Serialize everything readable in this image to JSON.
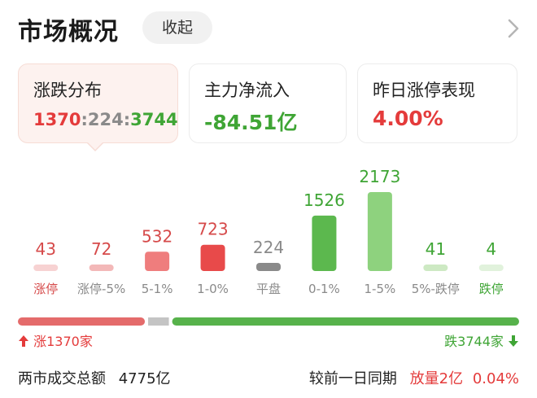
{
  "header": {
    "title": "市场概况",
    "collapse_label": "收起"
  },
  "cards": [
    {
      "title": "涨跌分布",
      "up": "1370",
      "sep1": ":",
      "flat": "224",
      "sep2": ":",
      "down": "3744"
    },
    {
      "title": "主力净流入",
      "value": "-84.51亿"
    },
    {
      "title": "昨日涨停表现",
      "value": "4.00%"
    }
  ],
  "colors": {
    "red": "#e43b3b",
    "green": "#3fa535",
    "gray": "#8a8a8a",
    "flat_bar": "#888888",
    "chevron": "#b5b5b5"
  },
  "chart_data": {
    "type": "bar",
    "categories": [
      "涨停",
      "涨停-5%",
      "5-1%",
      "1-0%",
      "平盘",
      "0-1%",
      "1-5%",
      "5%-跌停",
      "跌停"
    ],
    "values": [
      43,
      72,
      532,
      723,
      224,
      1526,
      2173,
      41,
      4
    ],
    "bar_colors": [
      "#f7d2d2",
      "#f3b8b8",
      "#ef7d7d",
      "#e84a4a",
      "#8a8a8a",
      "#5cb84e",
      "#8ed27e",
      "#cde9c3",
      "#e1f2dc"
    ],
    "value_colors": [
      "#d64a4a",
      "#d64a4a",
      "#d64a4a",
      "#d64a4a",
      "#8a8a8a",
      "#3fa535",
      "#3fa535",
      "#3fa535",
      "#3fa535"
    ],
    "label_colors": [
      "#d64a4a",
      "#8a8a8a",
      "#8a8a8a",
      "#8a8a8a",
      "#8a8a8a",
      "#8a8a8a",
      "#8a8a8a",
      "#8a8a8a",
      "#3fa535"
    ]
  },
  "distribution": {
    "up_label": "涨1370家",
    "down_label": "跌3744家",
    "up_count": 1370,
    "flat_count": 224,
    "down_count": 3744
  },
  "footer": {
    "turnover_label": "两市成交总额",
    "turnover_value": "4775亿",
    "compare_label": "较前一日同期",
    "compare_change": "放量2亿",
    "compare_pct": "0.04%"
  }
}
